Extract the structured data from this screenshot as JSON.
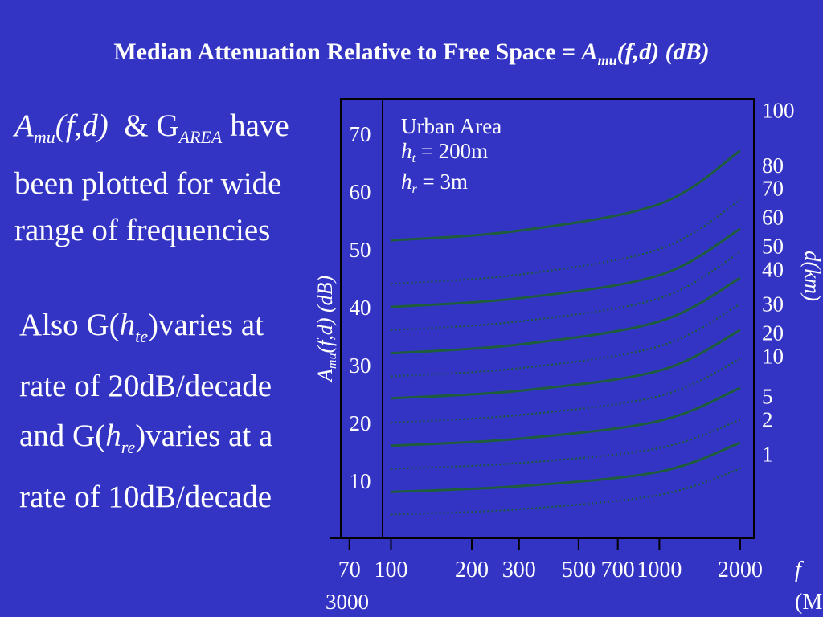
{
  "slide": {
    "title_prefix": "Median Attenuation Relative to Free Space = ",
    "title_symbol": "A",
    "title_symbol_sub": "mu",
    "title_suffix": "(f,d) (dB)",
    "bullet1": {
      "sym1": "A",
      "sym1_sub": "mu",
      "sym1_args": "(f,d)",
      "amp": "  & ",
      "sym2": "G",
      "sym2_sub": "AREA",
      "rest": " have been plotted for wide range of frequencies"
    },
    "bullet2": {
      "p1": "Also G(",
      "h1": "h",
      "h1_sub": "te",
      "p2": ")varies at rate of 20dB/decade and G(",
      "h2": "h",
      "h2_sub": "re",
      "p3": ")varies at a rate of 10dB/decade"
    }
  },
  "chart_data": {
    "type": "line",
    "x_scale": "log",
    "xlim": [
      65,
      2250
    ],
    "ylim": [
      0,
      76
    ],
    "x_ticks": [
      70,
      100,
      200,
      300,
      500,
      700,
      1000,
      2000
    ],
    "x_tick_labels": [
      "70",
      "100",
      "200",
      "300",
      "500",
      "700",
      "1000",
      "2000"
    ],
    "x_extra_label": "3000",
    "xlabel": "f",
    "xlabel_units": "(M",
    "y_ticks": [
      10,
      20,
      30,
      40,
      50,
      60,
      70
    ],
    "ylabel": {
      "base": "A",
      "sub": "mu",
      "rest": "(f,d) (dB)"
    },
    "right_axis_label": "d(km)",
    "annotation": {
      "line1": "Urban Area",
      "line2_sym": "h",
      "line2_sub": "t",
      "line2_rest": " = 200m",
      "line3_sym": "h",
      "line3_sub": "r",
      "line3_rest": " = 3m"
    },
    "line_color": "#1e5e3c",
    "plot_bg": "#3434c4",
    "series": [
      {
        "name": "1",
        "style": "dotted",
        "values": [
          [
            100,
            4.1
          ],
          [
            300,
            5.0
          ],
          [
            1000,
            7.5
          ],
          [
            2000,
            12.0
          ]
        ]
      },
      {
        "name": "2",
        "style": "solid",
        "values": [
          [
            100,
            8.0
          ],
          [
            300,
            9.0
          ],
          [
            1000,
            11.5
          ],
          [
            2000,
            16.5
          ]
        ]
      },
      {
        "name": "5",
        "style": "dotted",
        "values": [
          [
            100,
            12.0
          ],
          [
            300,
            13.0
          ],
          [
            1000,
            15.6
          ],
          [
            2000,
            20.5
          ]
        ]
      },
      {
        "name": "10",
        "style": "solid",
        "values": [
          [
            100,
            16.0
          ],
          [
            300,
            17.2
          ],
          [
            1000,
            20.3
          ],
          [
            2000,
            26.0
          ]
        ]
      },
      {
        "name": "20",
        "style": "dotted",
        "values": [
          [
            100,
            20.0
          ],
          [
            300,
            21.3
          ],
          [
            1000,
            24.6
          ],
          [
            2000,
            31.0
          ]
        ]
      },
      {
        "name": "30",
        "style": "solid",
        "values": [
          [
            100,
            24.2
          ],
          [
            300,
            25.5
          ],
          [
            1000,
            29.0
          ],
          [
            2000,
            36.0
          ]
        ]
      },
      {
        "name": "40",
        "style": "dotted",
        "values": [
          [
            100,
            28.0
          ],
          [
            300,
            29.4
          ],
          [
            1000,
            33.2
          ],
          [
            2000,
            40.5
          ]
        ]
      },
      {
        "name": "50",
        "style": "solid",
        "values": [
          [
            100,
            32.0
          ],
          [
            300,
            33.5
          ],
          [
            1000,
            37.5
          ],
          [
            2000,
            45.0
          ]
        ]
      },
      {
        "name": "60",
        "style": "dotted",
        "values": [
          [
            100,
            36.0
          ],
          [
            300,
            37.5
          ],
          [
            1000,
            41.5
          ],
          [
            2000,
            49.5
          ]
        ]
      },
      {
        "name": "70",
        "style": "solid",
        "values": [
          [
            100,
            40.0
          ],
          [
            300,
            41.5
          ],
          [
            1000,
            45.5
          ],
          [
            2000,
            53.5
          ]
        ]
      },
      {
        "name": "80",
        "style": "dotted",
        "values": [
          [
            100,
            44.0
          ],
          [
            300,
            45.6
          ],
          [
            1000,
            50.0
          ],
          [
            2000,
            58.5
          ]
        ]
      },
      {
        "name": "100",
        "style": "solid",
        "values": [
          [
            100,
            51.5
          ],
          [
            300,
            53.2
          ],
          [
            1000,
            57.8
          ],
          [
            2000,
            67.0
          ]
        ]
      }
    ],
    "right_labels": [
      "100",
      "80",
      "70",
      "60",
      "50",
      "40",
      "30",
      "20",
      "10",
      "5",
      "2",
      "1"
    ],
    "right_label_values": [
      74,
      64.5,
      60.5,
      55.5,
      50.5,
      46.5,
      40.5,
      35.5,
      31.5,
      24.5,
      20.5,
      14.5
    ]
  }
}
